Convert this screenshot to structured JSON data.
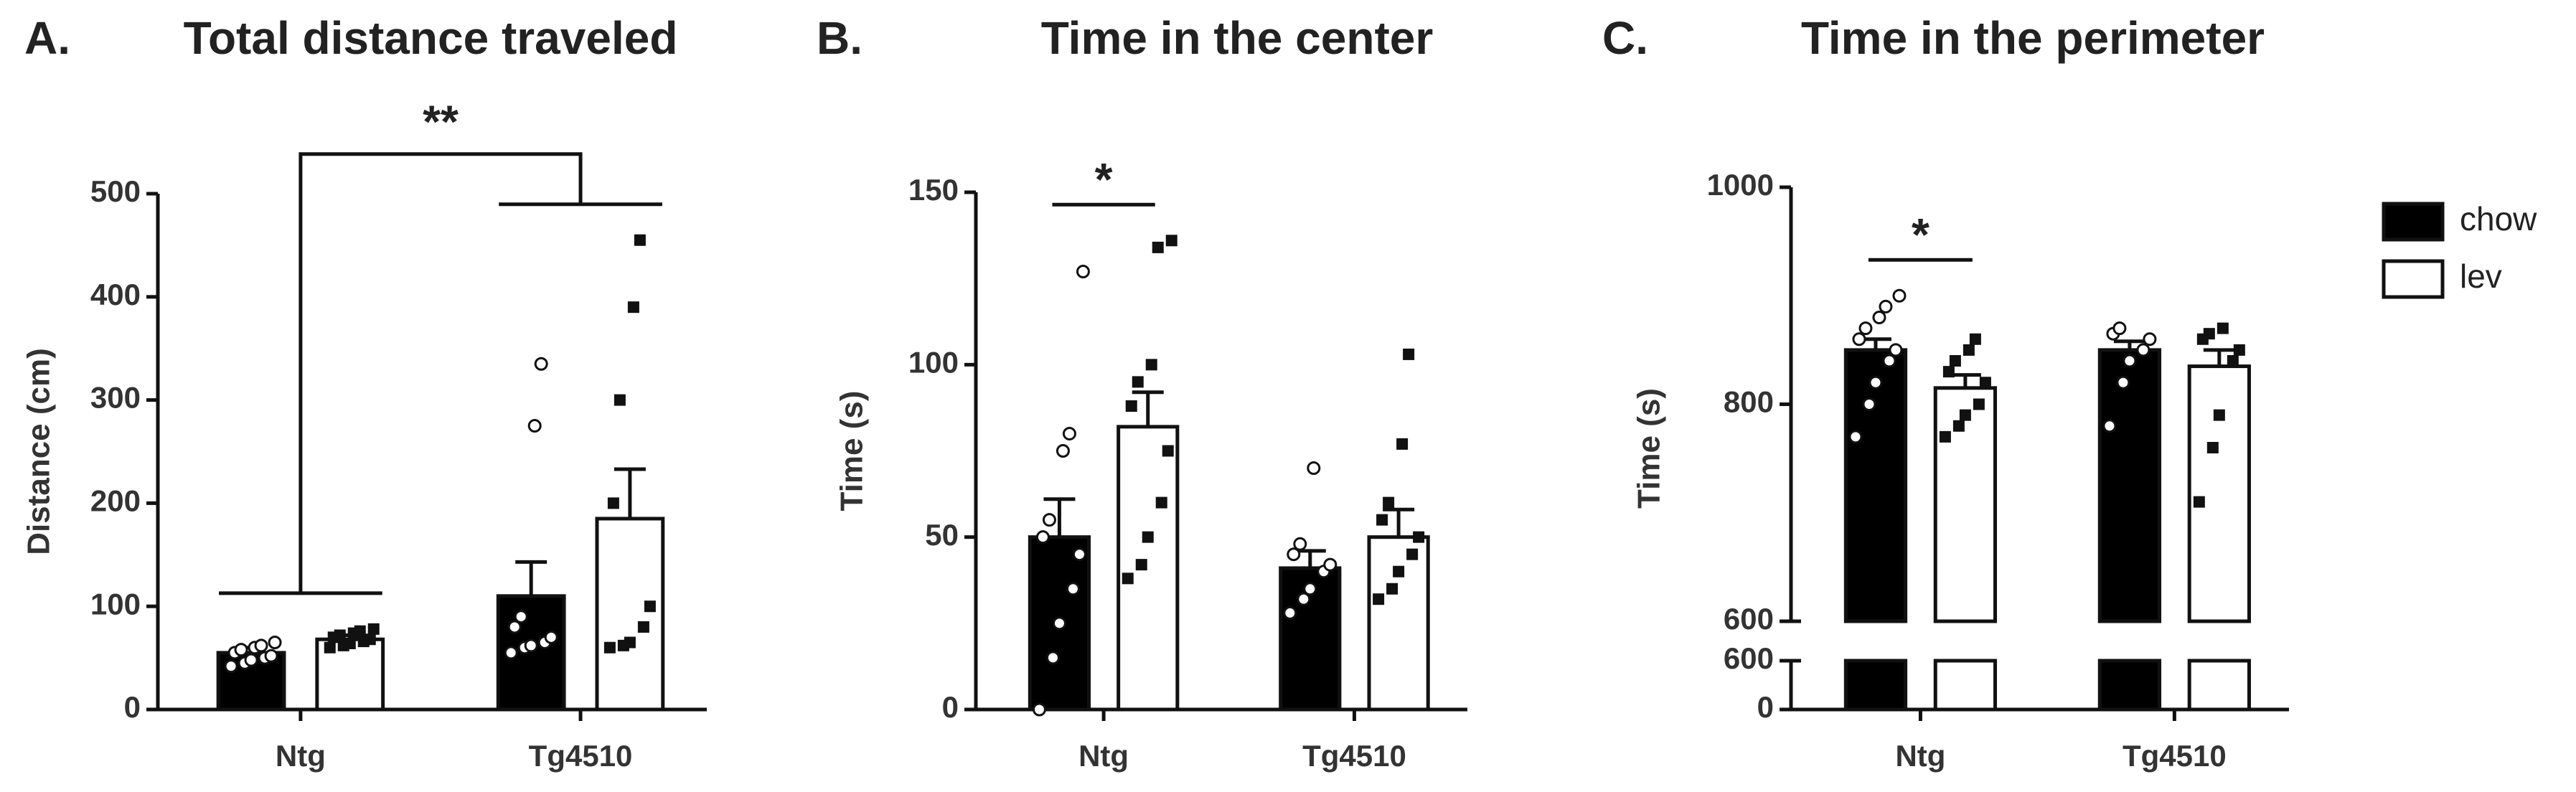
{
  "chart_data": [
    {
      "type": "bar",
      "panel_label": "A.",
      "title": "Total distance traveled",
      "y_label": "Distance (cm)",
      "categories": [
        "Ntg",
        "Tg4510"
      ],
      "ylim": [
        0,
        500
      ],
      "yticks": [
        0,
        100,
        200,
        300,
        400,
        500
      ],
      "series": [
        {
          "color": "#000000",
          "marker": "circle",
          "values": [
            55,
            110
          ],
          "errors": [
            5,
            33
          ],
          "points": [
            [
              42,
              45,
              48,
              50,
              52,
              55,
              58,
              60,
              62,
              65
            ],
            [
              55,
              60,
              62,
              65,
              70,
              80,
              90,
              275,
              335
            ]
          ]
        },
        {
          "color": "#ffffff",
          "marker": "square",
          "values": [
            68,
            185
          ],
          "errors": [
            4,
            48
          ],
          "points": [
            [
              60,
              62,
              64,
              66,
              68,
              70,
              72,
              74,
              76,
              78
            ],
            [
              60,
              62,
              65,
              80,
              100,
              200,
              300,
              390,
              455
            ]
          ]
        }
      ],
      "annotations": [
        {
          "text": "**",
          "between": "groups"
        }
      ]
    },
    {
      "type": "bar",
      "panel_label": "B.",
      "title": "Time in the center",
      "y_label": "Time  (s)",
      "categories": [
        "Ntg",
        "Tg4510"
      ],
      "ylim": [
        0,
        150
      ],
      "yticks": [
        0,
        50,
        100,
        150
      ],
      "series": [
        {
          "color": "#000000",
          "marker": "circle",
          "values": [
            50,
            41
          ],
          "errors": [
            11,
            5
          ],
          "points": [
            [
              0,
              15,
              25,
              35,
              45,
              50,
              55,
              75,
              80,
              127
            ],
            [
              28,
              32,
              35,
              40,
              42,
              45,
              48,
              70
            ]
          ]
        },
        {
          "color": "#ffffff",
          "marker": "square",
          "values": [
            82,
            50
          ],
          "errors": [
            10,
            8
          ],
          "points": [
            [
              38,
              42,
              50,
              60,
              75,
              88,
              95,
              100,
              134,
              136
            ],
            [
              32,
              35,
              40,
              45,
              50,
              55,
              60,
              77,
              103
            ]
          ]
        }
      ],
      "annotations": [
        {
          "text": "*",
          "between": "series"
        }
      ]
    },
    {
      "type": "bar",
      "panel_label": "C.",
      "title": "Time in the perimeter",
      "y_label": "Time  (s)",
      "categories": [
        "Ntg",
        "Tg4510"
      ],
      "axis_break": true,
      "ylim": [
        600,
        1000
      ],
      "yticks": [
        600,
        800,
        1000
      ],
      "ylim_lower": [
        0,
        600
      ],
      "yticks_lower": [
        0,
        600
      ],
      "series": [
        {
          "name": "chow",
          "color": "#000000",
          "marker": "circle",
          "values": [
            850,
            850
          ],
          "errors": [
            10,
            8
          ],
          "points": [
            [
              770,
              800,
              820,
              840,
              850,
              860,
              870,
              880,
              890,
              900
            ],
            [
              780,
              820,
              840,
              850,
              860,
              865,
              870
            ]
          ]
        },
        {
          "name": "lev",
          "color": "#ffffff",
          "marker": "square",
          "values": [
            815,
            835
          ],
          "errors": [
            12,
            15
          ],
          "points": [
            [
              770,
              780,
              790,
              800,
              820,
              830,
              840,
              850,
              860
            ],
            [
              710,
              760,
              790,
              840,
              850,
              860,
              865,
              870
            ]
          ]
        }
      ],
      "annotations": [
        {
          "text": "*",
          "between": "series"
        }
      ],
      "legend": "right"
    }
  ]
}
